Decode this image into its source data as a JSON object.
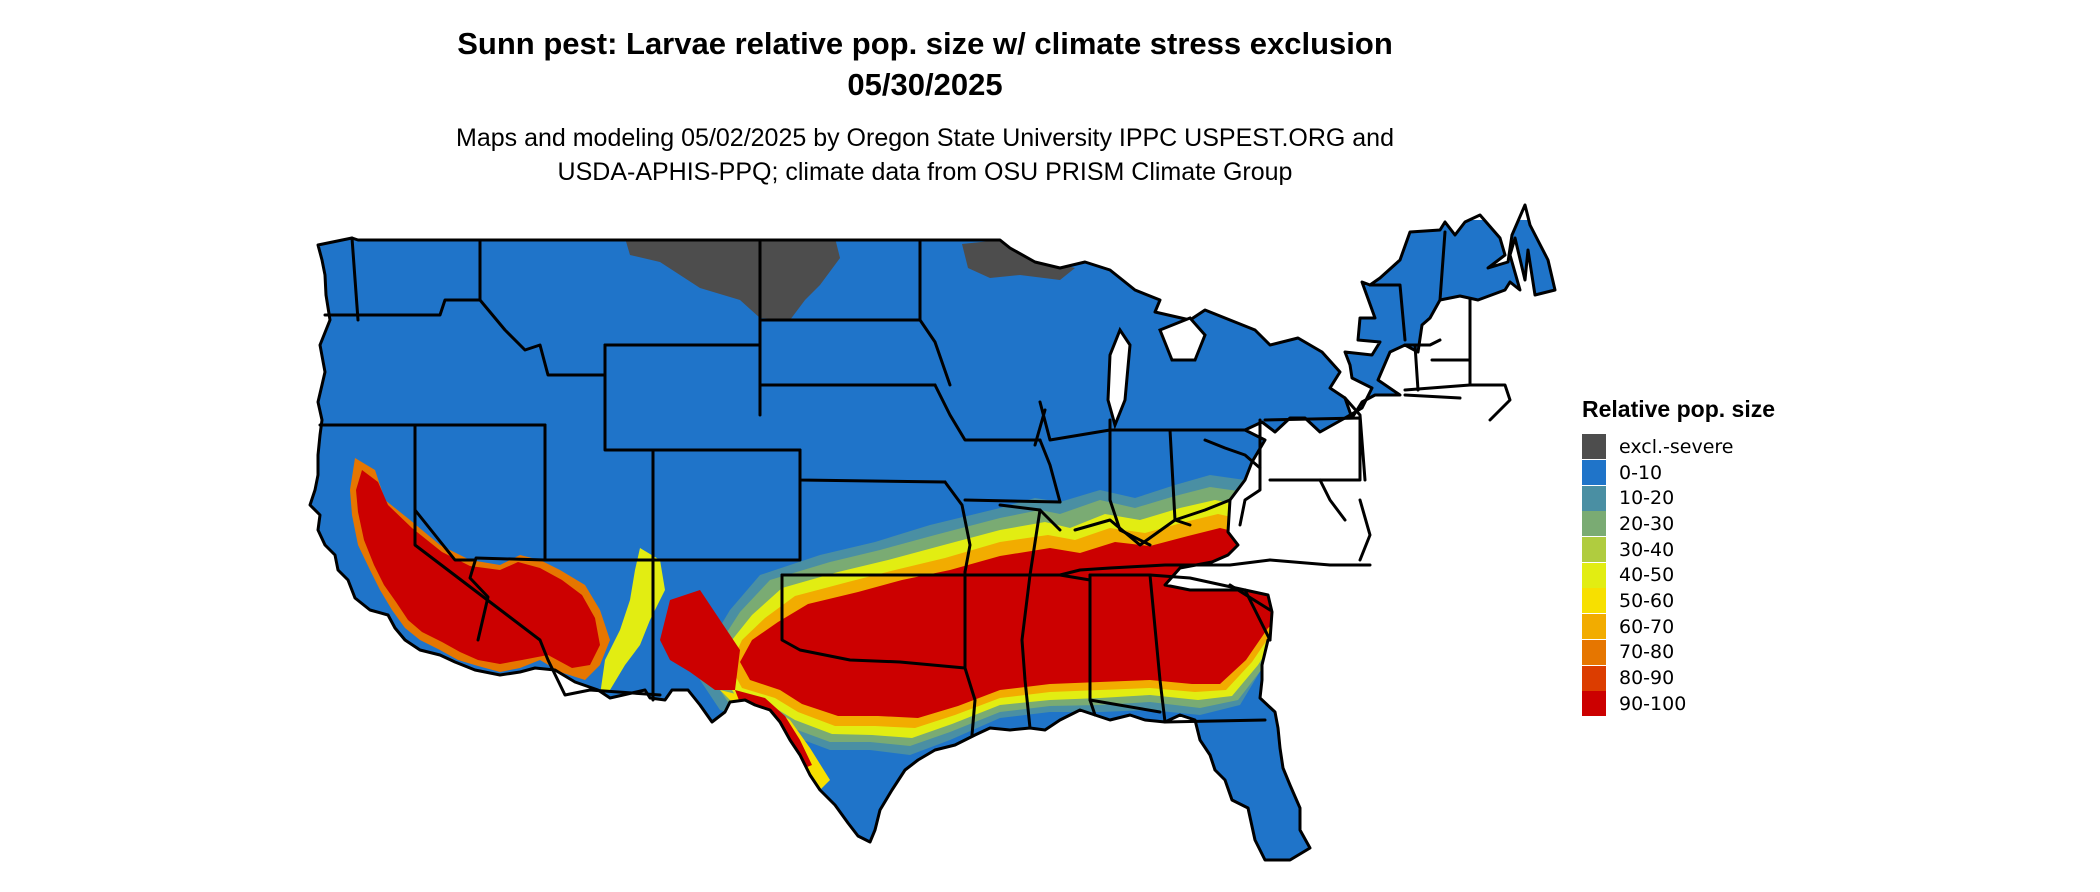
{
  "header": {
    "title_line1": "Sunn pest: Larvae relative pop. size w/ climate stress exclusion",
    "title_line2": "05/30/2025",
    "subtitle_line1": "Maps and modeling 05/02/2025 by Oregon State University IPPC USPEST.ORG and",
    "subtitle_line2": "USDA-APHIS-PPQ; climate data from OSU PRISM Climate Group"
  },
  "legend": {
    "title": "Relative pop. size",
    "items": [
      {
        "label": "excl.-severe",
        "color": "#4d4d4d"
      },
      {
        "label": "0-10",
        "color": "#1f74c9"
      },
      {
        "label": "10-20",
        "color": "#4a8fa3"
      },
      {
        "label": "20-30",
        "color": "#7aab73"
      },
      {
        "label": "30-40",
        "color": "#b0cc3f"
      },
      {
        "label": "40-50",
        "color": "#e2ed12"
      },
      {
        "label": "50-60",
        "color": "#f7e000"
      },
      {
        "label": "60-70",
        "color": "#f2ac00"
      },
      {
        "label": "70-80",
        "color": "#e67600"
      },
      {
        "label": "80-90",
        "color": "#dc3d00"
      },
      {
        "label": "90-100",
        "color": "#cc0000"
      }
    ]
  },
  "map": {
    "region": "Contiguous United States",
    "state_border_color": "#000000"
  }
}
